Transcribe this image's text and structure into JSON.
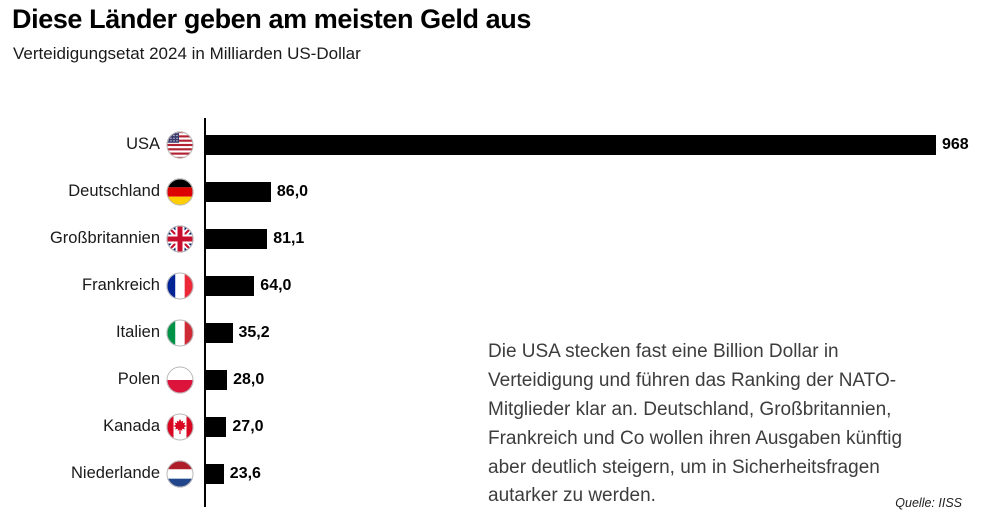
{
  "header": {
    "title": "Diese Länder geben am meisten Geld aus",
    "subtitle": "Verteidigungsetat 2024 in Milliarden US-Dollar"
  },
  "chart_data": {
    "type": "bar",
    "orientation": "horizontal",
    "title": "Diese Länder geben am meisten Geld aus",
    "subtitle": "Verteidigungsetat 2024 in Milliarden US-Dollar",
    "unit": "Milliarden US-Dollar",
    "categories": [
      "USA",
      "Deutschland",
      "Großbritannien",
      "Frankreich",
      "Italien",
      "Polen",
      "Kanada",
      "Niederlande"
    ],
    "values": [
      968,
      86.0,
      81.1,
      64.0,
      35.2,
      28.0,
      27.0,
      23.6
    ],
    "value_labels": [
      "968",
      "86,0",
      "81,1",
      "64,0",
      "35,2",
      "28,0",
      "27,0",
      "23,6"
    ],
    "flags": [
      "usa",
      "germany",
      "uk",
      "france",
      "italy",
      "poland",
      "canada",
      "netherlands"
    ],
    "xlim": [
      0,
      968
    ],
    "bar_color": "#000000",
    "grid": false,
    "legend": false
  },
  "annotation": {
    "text": "Die USA stecken fast eine Billion Dollar in Verteidigung und führen das Ranking der NATO-Mitglieder klar an. Deutschland, Großbritannien, Frankreich und Co wollen ihren Ausgaben künftig aber deutlich steigern, um in Sicherheitsfragen autarker zu werden."
  },
  "source": "Quelle: IISS"
}
